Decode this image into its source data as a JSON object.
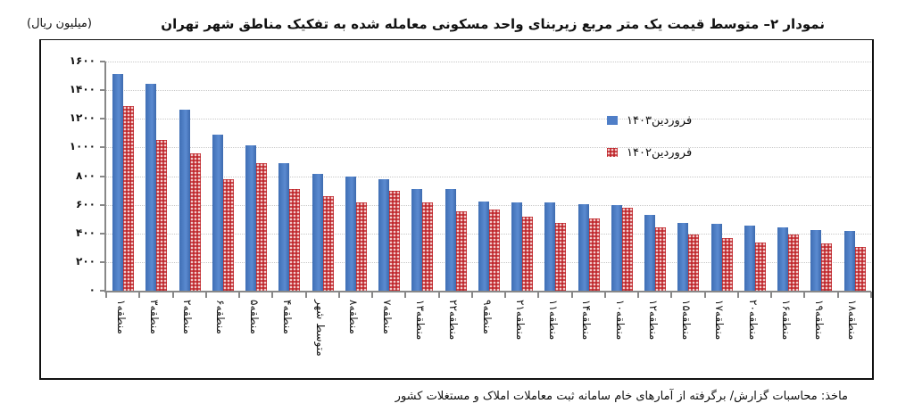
{
  "title": {
    "main": "نمودار ۲– متوسط قیمت یک متر مربع زیربنای واحد مسکونی معامله شده به تفکیک مناطق شهر تهران",
    "unit": "(میلیون ریال)"
  },
  "source": "ماخذ: محاسبات گزارش/ برگرفته از آمارهای خام سامانه ثبت معاملات املاک و مستغلات کشور",
  "y_tick_labels": [
    "۰",
    "۲۰۰",
    "۴۰۰",
    "۶۰۰",
    "۸۰۰",
    "۱۰۰۰",
    "۱۲۰۰",
    "۱۴۰۰",
    "۱۶۰۰"
  ],
  "colors": {
    "series_1403": "#4f7ec7",
    "series_1402": "#c0282d"
  },
  "chart_data": {
    "type": "bar",
    "title": "نمودار ۲– متوسط قیمت یک متر مربع زیربنای واحد مسکونی معامله شده به تفکیک مناطق شهر تهران",
    "xlabel": "",
    "ylabel": "(میلیون ریال)",
    "ylim": [
      0,
      1600
    ],
    "yticks": [
      0,
      200,
      400,
      600,
      800,
      1000,
      1200,
      1400,
      1600
    ],
    "grid": true,
    "legend_position": "upper-right-inside",
    "categories": [
      "منطقه۱",
      "منطقه۳",
      "منطقه۲",
      "منطقه۶",
      "منطقه۵",
      "منطقه۴",
      "متوسط شهر",
      "منطقه۸",
      "منطقه۷",
      "منطقه۱۳",
      "منطقه۲۲",
      "منطقه۹",
      "منطقه۲۱",
      "منطقه۱۱",
      "منطقه۱۴",
      "منطقه۱۰",
      "منطقه۱۲",
      "منطقه۱۵",
      "منطقه۱۷",
      "منطقه۲۰",
      "منطقه۱۶",
      "منطقه۱۹",
      "منطقه۱۸"
    ],
    "series": [
      {
        "name": "فروردین۱۴۰۳",
        "values": [
          1510,
          1445,
          1265,
          1090,
          1015,
          890,
          815,
          795,
          780,
          710,
          710,
          625,
          615,
          615,
          605,
          600,
          530,
          475,
          470,
          455,
          440,
          425,
          420
        ]
      },
      {
        "name": "فروردین۱۴۰۲",
        "values": [
          1290,
          1055,
          960,
          780,
          890,
          710,
          660,
          615,
          700,
          615,
          555,
          565,
          515,
          475,
          505,
          580,
          440,
          395,
          370,
          335,
          390,
          330,
          305
        ]
      }
    ]
  }
}
